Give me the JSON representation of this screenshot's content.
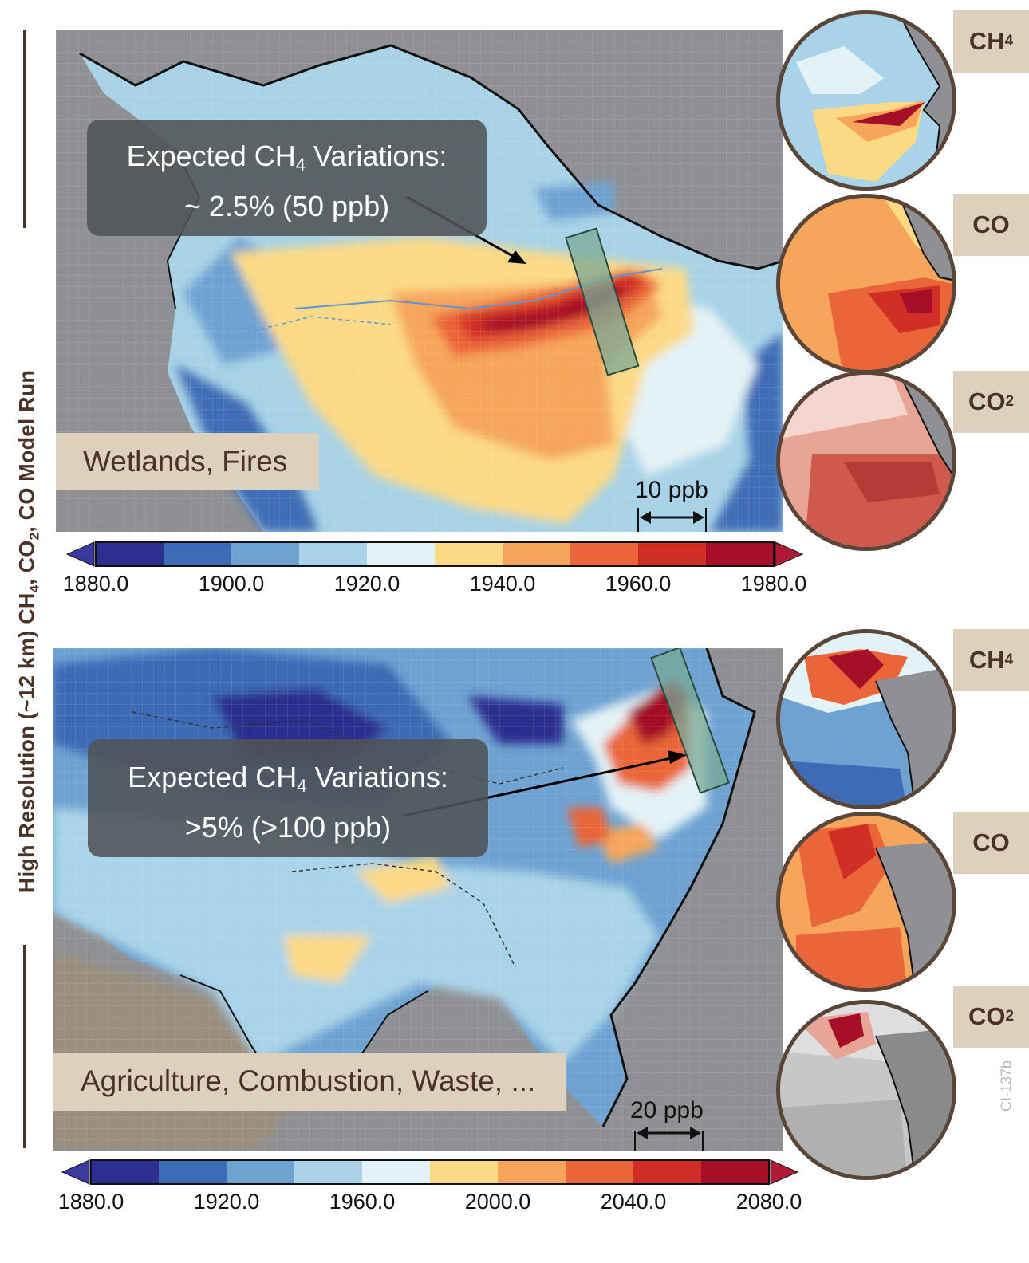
{
  "side_title": "High Resolution (~12 km) CH4, CO2, CO Model Run",
  "code_id": "CI-137b",
  "colors": {
    "brown": "#4a3326",
    "label_bg": "#ddd0bc",
    "colormap": [
      "#2c2f8f",
      "#3e6bb5",
      "#6ea2d1",
      "#a9d3e8",
      "#e3f2f6",
      "#fbd985",
      "#f6a55a",
      "#ea6539",
      "#d12f26",
      "#a50f27"
    ]
  },
  "panels": [
    {
      "region": "amazon",
      "callout_line1_pre": "Expected CH",
      "callout_line1_sub": "4",
      "callout_line1_post": " Variations:",
      "callout_line2": "~ 2.5% (50 ppb)",
      "source_label": "Wetlands, Fires",
      "scale_label": "10 ppb",
      "colorbar": {
        "ticks": [
          "1880.0",
          "1900.0",
          "1920.0",
          "1940.0",
          "1960.0",
          "1980.0"
        ],
        "min": 1880,
        "max": 1980,
        "step": 10
      },
      "gas_labels": [
        {
          "main": "CH",
          "sub": "4"
        },
        {
          "main": "CO",
          "sub": ""
        },
        {
          "main": "CO",
          "sub": "2"
        }
      ]
    },
    {
      "region": "east-asia",
      "callout_line1_pre": "Expected CH",
      "callout_line1_sub": "4",
      "callout_line1_post": " Variations:",
      "callout_line2": ">5% (>100 ppb)",
      "source_label": "Agriculture, Combustion, Waste, ...",
      "scale_label": "20 ppb",
      "colorbar": {
        "ticks": [
          "1880.0",
          "1920.0",
          "1960.0",
          "2000.0",
          "2040.0",
          "2080.0"
        ],
        "min": 1880,
        "max": 2080,
        "step": 20
      },
      "gas_labels": [
        {
          "main": "CH",
          "sub": "4"
        },
        {
          "main": "CO",
          "sub": ""
        },
        {
          "main": "CO",
          "sub": "2"
        }
      ]
    }
  ]
}
